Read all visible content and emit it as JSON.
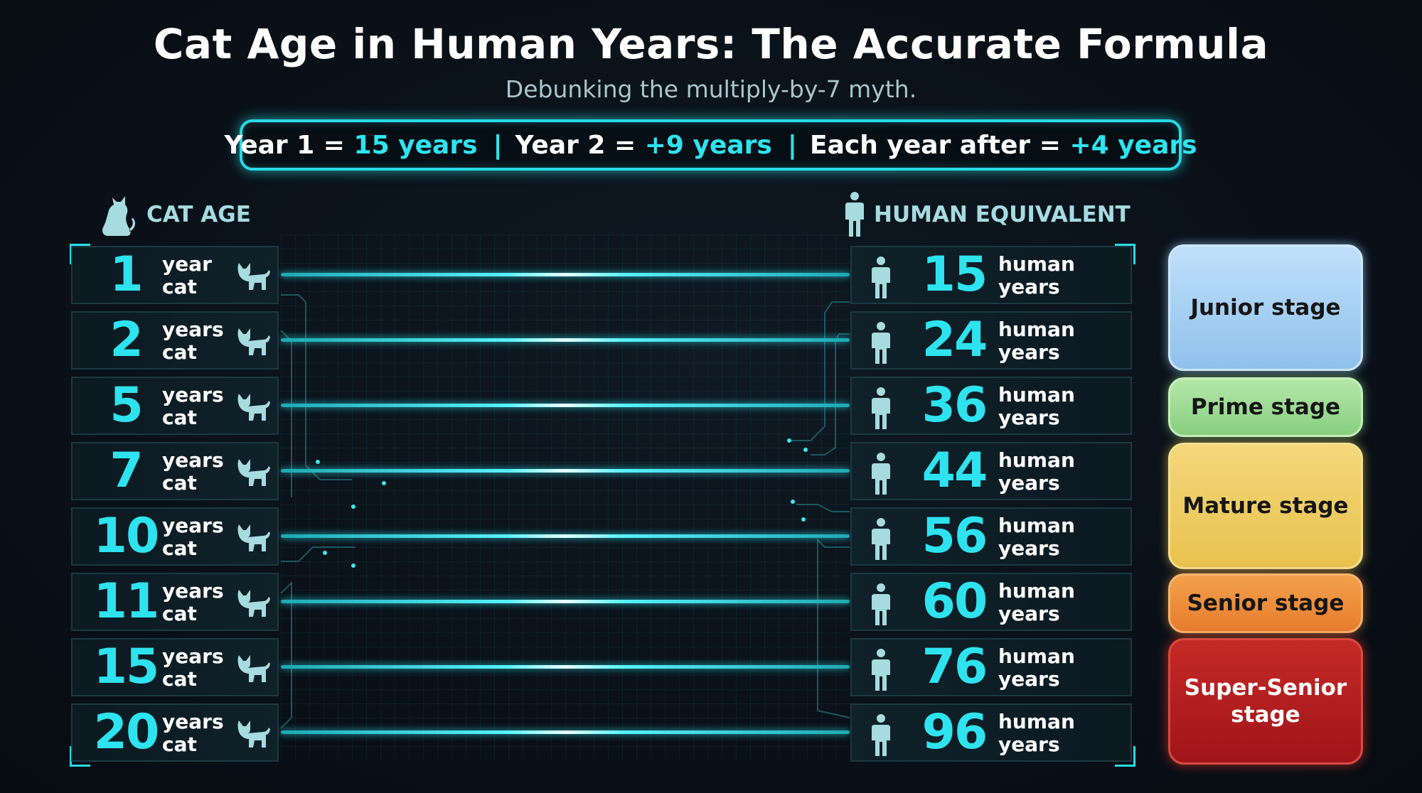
{
  "title": "Cat Age in Human Years: The Accurate Formula",
  "subtitle": "Debunking the multiply-by-7 myth.",
  "formula": {
    "part1_label": "Year 1 =",
    "part1_value": "15 years",
    "part2_label": "Year 2 =",
    "part2_value": "+9 years",
    "part3_label": "Each year after =",
    "part3_value": "+4 years",
    "separator": "|"
  },
  "cat_header": "CAT AGE",
  "human_header": "HUMAN EQUIVALENT",
  "rows": [
    {
      "cat": "1",
      "cat_unit1": "year",
      "cat_unit2": "cat",
      "human": "15",
      "human_unit1": "human",
      "human_unit2": "years"
    },
    {
      "cat": "2",
      "cat_unit1": "years",
      "cat_unit2": "cat",
      "human": "24",
      "human_unit1": "human",
      "human_unit2": "years"
    },
    {
      "cat": "5",
      "cat_unit1": "years",
      "cat_unit2": "cat",
      "human": "36",
      "human_unit1": "human",
      "human_unit2": "years"
    },
    {
      "cat": "7",
      "cat_unit1": "years",
      "cat_unit2": "cat",
      "human": "44",
      "human_unit1": "human",
      "human_unit2": "years"
    },
    {
      "cat": "10",
      "cat_unit1": "years",
      "cat_unit2": "cat",
      "human": "56",
      "human_unit1": "human",
      "human_unit2": "years"
    },
    {
      "cat": "11",
      "cat_unit1": "years",
      "cat_unit2": "cat",
      "human": "60",
      "human_unit1": "human",
      "human_unit2": "years"
    },
    {
      "cat": "15",
      "cat_unit1": "years",
      "cat_unit2": "cat",
      "human": "76",
      "human_unit1": "human",
      "human_unit2": "years"
    },
    {
      "cat": "20",
      "cat_unit1": "years",
      "cat_unit2": "cat",
      "human": "96",
      "human_unit1": "human",
      "human_unit2": "years"
    }
  ],
  "stages": [
    {
      "id": "junior",
      "label": "Junior stage"
    },
    {
      "id": "prime",
      "label": "Prime stage"
    },
    {
      "id": "mature",
      "label": "Mature stage"
    },
    {
      "id": "senior",
      "label": "Senior stage"
    },
    {
      "id": "super",
      "label_line1": "Super-Senior",
      "label_line2": "stage"
    }
  ],
  "colors": {
    "accent": "#2ee3ef",
    "junior": "#9fcdf2",
    "prime": "#96d88c",
    "mature": "#efcc60",
    "senior": "#ec8c38",
    "super_senior": "#b31f20"
  }
}
